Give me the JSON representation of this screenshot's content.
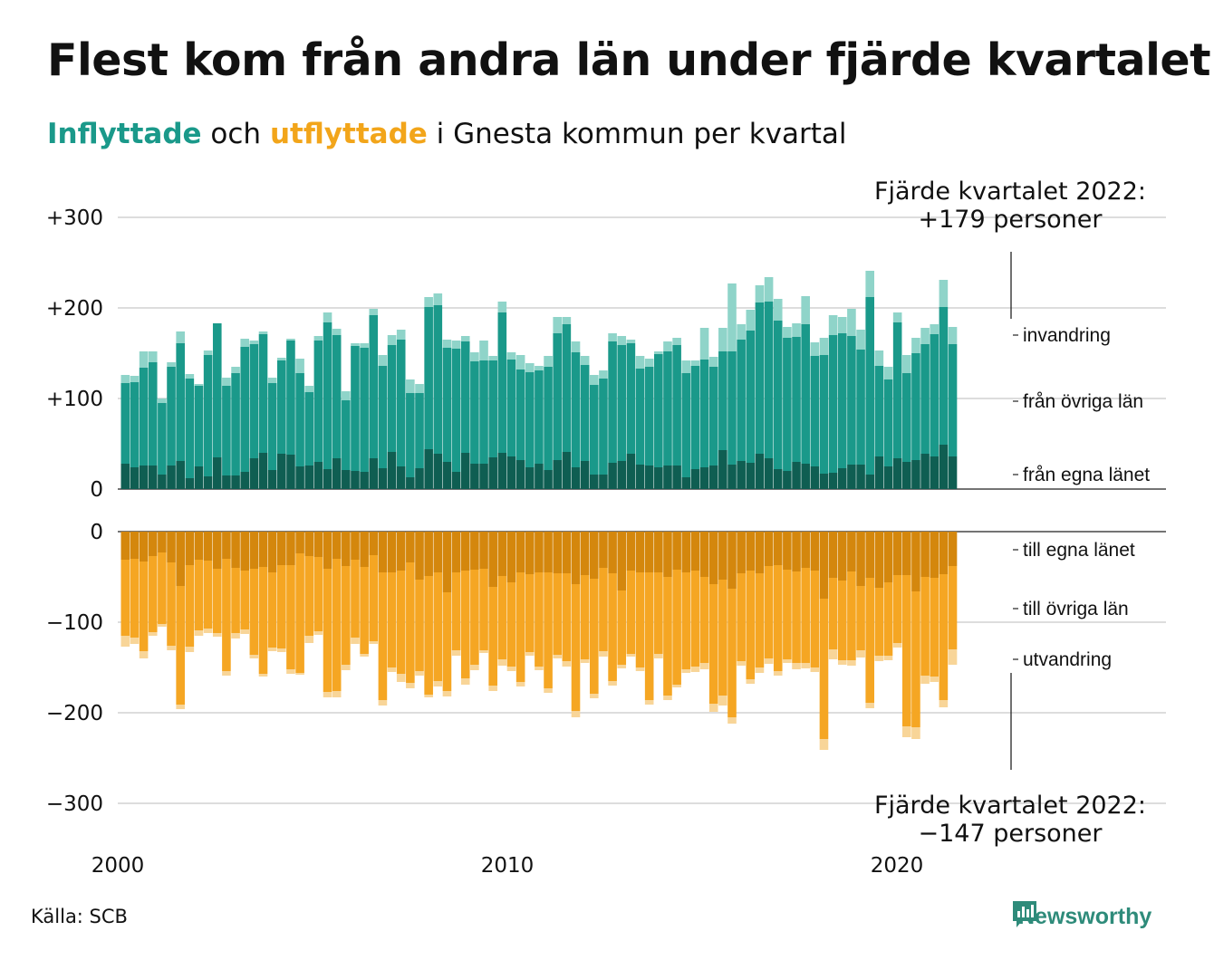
{
  "title": "Flest kom från andra län under fjärde kvartalet",
  "subtitle": {
    "in_word": "Inflyttade",
    "mid1": " och ",
    "out_word": "utflyttade",
    "rest": " i Gnesta kommun per kvartal"
  },
  "source": "Källa: SCB",
  "brand": "Newsworthy",
  "colors": {
    "in_egna": "#0f5e52",
    "in_ovriga": "#1a998a",
    "in_inv": "#8fd4c9",
    "out_egna": "#d4870d",
    "out_ovriga": "#f5a623",
    "out_utv": "#f8d598",
    "grid": "#dddddd",
    "text": "#111111"
  },
  "chart_data": {
    "type": "bar",
    "x_labels": [
      "2000",
      "2010",
      "2020"
    ],
    "top_ticks": [
      "+300",
      "+200",
      "+100",
      "0"
    ],
    "bottom_ticks": [
      "0",
      "−100",
      "−200",
      "−300"
    ],
    "ylim_top": [
      0,
      300
    ],
    "ylim_bottom": [
      -300,
      0
    ],
    "annotation_top": [
      "Fjärde kvartalet 2022:",
      "+179 personer"
    ],
    "annotation_bottom": [
      "Fjärde kvartalet 2022:",
      "−147 personer"
    ],
    "in_series_labels": [
      "invandring",
      "från övriga län",
      "från egna länet"
    ],
    "out_series_labels": [
      "till egna länet",
      "till övriga län",
      "utvandring"
    ],
    "inflow": {
      "egna": [
        28,
        24,
        26,
        26,
        16,
        26,
        31,
        12,
        25,
        14,
        35,
        15,
        15,
        19,
        34,
        40,
        21,
        39,
        38,
        25,
        26,
        30,
        22,
        34,
        21,
        20,
        19,
        34,
        23,
        41,
        25,
        13,
        23,
        44,
        39,
        30,
        19,
        40,
        28,
        28,
        35,
        40,
        36,
        32,
        24,
        28,
        21,
        32,
        41,
        24,
        31,
        16,
        16,
        29,
        31,
        39,
        27,
        26,
        24,
        26,
        26,
        13,
        22,
        24,
        26,
        43,
        27,
        31,
        29,
        39,
        34,
        22,
        20,
        30,
        28,
        25,
        17,
        18,
        23,
        27,
        27,
        16,
        36,
        25,
        34,
        30,
        32,
        39,
        36,
        49,
        36
      ],
      "ovriga": [
        89,
        94,
        108,
        114,
        79,
        109,
        130,
        110,
        89,
        134,
        148,
        99,
        113,
        138,
        126,
        131,
        96,
        103,
        126,
        103,
        81,
        134,
        162,
        136,
        77,
        138,
        137,
        158,
        113,
        118,
        140,
        93,
        83,
        157,
        164,
        126,
        136,
        123,
        113,
        114,
        107,
        155,
        107,
        100,
        105,
        103,
        114,
        140,
        141,
        127,
        106,
        99,
        106,
        134,
        128,
        122,
        106,
        109,
        125,
        126,
        133,
        115,
        114,
        119,
        109,
        109,
        125,
        134,
        146,
        167,
        173,
        164,
        147,
        138,
        154,
        122,
        131,
        152,
        149,
        142,
        127,
        196,
        100,
        96,
        150,
        98,
        118,
        121,
        135,
        152,
        124
      ],
      "inv": [
        9,
        7,
        18,
        12,
        5,
        5,
        13,
        5,
        2,
        5,
        0,
        9,
        7,
        9,
        4,
        3,
        6,
        3,
        2,
        16,
        7,
        5,
        11,
        7,
        10,
        3,
        5,
        7,
        12,
        11,
        11,
        15,
        10,
        11,
        13,
        9,
        9,
        6,
        10,
        22,
        5,
        12,
        8,
        16,
        10,
        5,
        12,
        18,
        8,
        12,
        10,
        11,
        9,
        9,
        10,
        4,
        14,
        9,
        3,
        11,
        8,
        14,
        6,
        35,
        11,
        26,
        75,
        17,
        23,
        19,
        27,
        24,
        12,
        15,
        31,
        15,
        19,
        22,
        18,
        30,
        22,
        29,
        17,
        14,
        11,
        20,
        17,
        18,
        11,
        30,
        19
      ]
    },
    "outflow": {
      "egna": [
        31,
        30,
        33,
        27,
        23,
        34,
        60,
        37,
        31,
        32,
        41,
        30,
        40,
        43,
        41,
        39,
        45,
        37,
        37,
        24,
        27,
        28,
        41,
        30,
        38,
        31,
        39,
        26,
        45,
        45,
        43,
        34,
        53,
        49,
        45,
        67,
        45,
        43,
        42,
        41,
        61,
        49,
        56,
        45,
        47,
        45,
        45,
        46,
        46,
        58,
        48,
        52,
        40,
        46,
        65,
        43,
        45,
        45,
        45,
        50,
        42,
        45,
        43,
        50,
        58,
        53,
        63,
        46,
        43,
        46,
        38,
        37,
        42,
        44,
        40,
        43,
        74,
        51,
        54,
        44,
        60,
        51,
        62,
        56,
        48,
        48,
        66,
        50,
        51,
        47,
        38
      ],
      "ovriga": [
        84,
        87,
        99,
        84,
        79,
        92,
        131,
        90,
        78,
        75,
        71,
        124,
        72,
        65,
        95,
        118,
        83,
        92,
        115,
        132,
        88,
        82,
        136,
        146,
        109,
        86,
        96,
        95,
        141,
        105,
        114,
        133,
        101,
        131,
        120,
        109,
        86,
        119,
        105,
        90,
        109,
        92,
        93,
        121,
        86,
        104,
        128,
        90,
        97,
        140,
        93,
        127,
        92,
        119,
        82,
        92,
        105,
        141,
        90,
        131,
        127,
        107,
        106,
        95,
        132,
        128,
        142,
        97,
        120,
        104,
        102,
        117,
        99,
        101,
        105,
        107,
        155,
        79,
        88,
        98,
        71,
        138,
        75,
        81,
        75,
        167,
        150,
        109,
        109,
        139,
        92
      ],
      "utv": [
        12,
        7,
        8,
        4,
        3,
        5,
        5,
        6,
        6,
        5,
        4,
        5,
        6,
        5,
        4,
        3,
        4,
        4,
        5,
        2,
        8,
        4,
        6,
        7,
        6,
        7,
        3,
        3,
        6,
        5,
        9,
        6,
        5,
        3,
        6,
        6,
        6,
        7,
        6,
        3,
        6,
        7,
        5,
        5,
        4,
        4,
        5,
        4,
        6,
        7,
        4,
        5,
        6,
        5,
        4,
        3,
        4,
        5,
        5,
        5,
        3,
        4,
        6,
        7,
        9,
        11,
        7,
        5,
        5,
        6,
        6,
        5,
        4,
        7,
        6,
        5,
        12,
        11,
        5,
        6,
        8,
        6,
        6,
        5,
        5,
        12,
        13,
        9,
        6,
        8,
        17
      ]
    }
  }
}
